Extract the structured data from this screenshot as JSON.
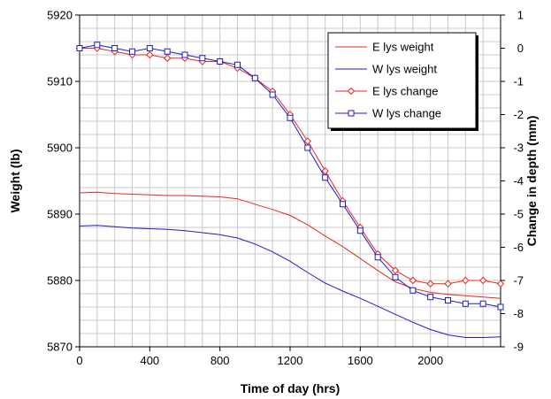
{
  "chart_data": {
    "type": "line",
    "title": "",
    "xlabel": "Time of day  (hrs)",
    "ylabel_left": "Weight  (lb)",
    "ylabel_right": "Change in depth  (mm)",
    "x_range": [
      0,
      2400
    ],
    "y_left_range": [
      5870,
      5920
    ],
    "y_right_range": [
      -9,
      1
    ],
    "x_ticks": [
      "0",
      "400",
      "800",
      "1200",
      "1600",
      "2000"
    ],
    "y_left_ticks": [
      "5870",
      "5880",
      "5890",
      "5900",
      "5910",
      "5920"
    ],
    "y_right_ticks": [
      "-9",
      "-8",
      "-7",
      "-6",
      "-5",
      "-4",
      "-3",
      "-2",
      "-1",
      "0",
      "1"
    ],
    "grid": true,
    "legend_position": "top-right",
    "colors": {
      "east": "#e8281c",
      "west": "#1c1ccc"
    },
    "series": [
      {
        "name": "E lys weight",
        "axis": "left",
        "style": "line",
        "color": "#e8281c",
        "x": [
          0,
          100,
          200,
          300,
          400,
          500,
          600,
          700,
          800,
          900,
          1000,
          1100,
          1200,
          1300,
          1400,
          1500,
          1600,
          1700,
          1800,
          1900,
          2000,
          2100,
          2200,
          2300,
          2400
        ],
        "y": [
          5893.2,
          5893.3,
          5893.1,
          5893.0,
          5892.9,
          5892.8,
          5892.8,
          5892.7,
          5892.6,
          5892.3,
          5891.5,
          5890.7,
          5889.8,
          5888.4,
          5886.7,
          5885.1,
          5883.3,
          5881.5,
          5879.8,
          5878.8,
          5878.2,
          5877.9,
          5877.7,
          5877.5,
          5877.3
        ]
      },
      {
        "name": "W lys weight",
        "axis": "left",
        "style": "line",
        "color": "#1c1ccc",
        "x": [
          0,
          100,
          200,
          300,
          400,
          500,
          600,
          700,
          800,
          900,
          1000,
          1100,
          1200,
          1300,
          1400,
          1500,
          1600,
          1700,
          1800,
          1900,
          2000,
          2100,
          2200,
          2300,
          2400
        ],
        "y": [
          5888.2,
          5888.3,
          5888.1,
          5887.9,
          5887.8,
          5887.7,
          5887.5,
          5887.2,
          5886.9,
          5886.4,
          5885.5,
          5884.3,
          5882.9,
          5881.2,
          5879.6,
          5878.4,
          5877.3,
          5876.1,
          5874.9,
          5873.7,
          5872.6,
          5871.8,
          5871.4,
          5871.4,
          5871.5
        ]
      },
      {
        "name": "E lys change",
        "axis": "right",
        "style": "marker-diamond",
        "color": "#e8281c",
        "x": [
          0,
          100,
          200,
          300,
          400,
          500,
          600,
          700,
          800,
          900,
          1000,
          1100,
          1200,
          1300,
          1400,
          1500,
          1600,
          1700,
          1800,
          1900,
          2000,
          2100,
          2200,
          2300,
          2400
        ],
        "y": [
          0.0,
          0.0,
          -0.1,
          -0.2,
          -0.2,
          -0.3,
          -0.3,
          -0.4,
          -0.4,
          -0.6,
          -0.9,
          -1.3,
          -2.0,
          -2.8,
          -3.7,
          -4.6,
          -5.4,
          -6.2,
          -6.7,
          -7.0,
          -7.1,
          -7.1,
          -7.0,
          -7.0,
          -7.1
        ]
      },
      {
        "name": "W lys change",
        "axis": "right",
        "style": "marker-square",
        "color": "#1c1ccc",
        "x": [
          0,
          100,
          200,
          300,
          400,
          500,
          600,
          700,
          800,
          900,
          1000,
          1100,
          1200,
          1300,
          1400,
          1500,
          1600,
          1700,
          1800,
          1900,
          2000,
          2100,
          2200,
          2300,
          2400
        ],
        "y": [
          0.0,
          0.1,
          0.0,
          -0.1,
          0.0,
          -0.1,
          -0.2,
          -0.3,
          -0.4,
          -0.5,
          -0.9,
          -1.4,
          -2.1,
          -3.0,
          -3.9,
          -4.7,
          -5.5,
          -6.3,
          -6.9,
          -7.3,
          -7.5,
          -7.6,
          -7.7,
          -7.7,
          -7.8
        ]
      }
    ]
  }
}
